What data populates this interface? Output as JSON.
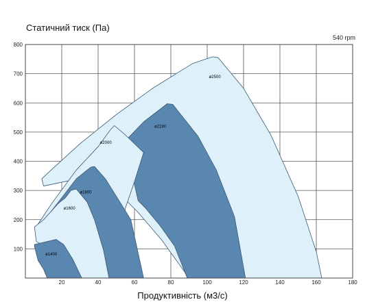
{
  "chart_data": {
    "type": "area",
    "ylabel": "Статичний тиск (Па)",
    "xlabel": "Продуктивність (м3/с)",
    "annotation": "540 rpm",
    "xlim": [
      0,
      180
    ],
    "ylim": [
      0,
      800
    ],
    "xticks": [
      20,
      40,
      60,
      80,
      100,
      120,
      140,
      160,
      180
    ],
    "yticks": [
      100,
      200,
      300,
      400,
      500,
      600,
      700,
      800
    ],
    "grid": true,
    "series": [
      {
        "name": "ø2500",
        "color": "#def1fb",
        "label_at": [
          101,
          685
        ],
        "outline": [
          [
            9,
            340
          ],
          [
            15,
            375
          ],
          [
            30,
            460
          ],
          [
            50,
            560
          ],
          [
            70,
            650
          ],
          [
            92,
            735
          ],
          [
            103,
            758
          ],
          [
            106,
            755
          ],
          [
            120,
            650
          ],
          [
            135,
            490
          ],
          [
            150,
            280
          ],
          [
            160,
            90
          ],
          [
            163,
            0
          ],
          [
            90,
            0
          ],
          [
            75,
            130
          ],
          [
            62,
            225
          ],
          [
            50,
            300
          ],
          [
            40,
            340
          ],
          [
            35,
            348
          ],
          [
            10,
            315
          ]
        ]
      },
      {
        "name": "ø2240",
        "color": "#5a87b0",
        "label_at": [
          71,
          515
        ],
        "outline": [
          [
            55,
            470
          ],
          [
            65,
            535
          ],
          [
            78,
            597
          ],
          [
            81,
            595
          ],
          [
            95,
            485
          ],
          [
            105,
            370
          ],
          [
            115,
            210
          ],
          [
            121,
            0
          ],
          [
            89,
            0
          ],
          [
            82,
            110
          ],
          [
            74,
            180
          ],
          [
            66,
            240
          ],
          [
            62,
            265
          ],
          [
            55,
            460
          ]
        ]
      },
      {
        "name": "ø2000",
        "color": "#def1fb",
        "label_at": [
          41,
          460
        ],
        "outline": [
          [
            7,
            185
          ],
          [
            15,
            260
          ],
          [
            28,
            370
          ],
          [
            40,
            450
          ],
          [
            47,
            510
          ],
          [
            49,
            522
          ],
          [
            55,
            490
          ],
          [
            60,
            460
          ],
          [
            65,
            430
          ],
          [
            60,
            330
          ],
          [
            55,
            240
          ],
          [
            52,
            170
          ],
          [
            47,
            0
          ],
          [
            25,
            0
          ],
          [
            20,
            95
          ],
          [
            15,
            150
          ],
          [
            10,
            170
          ],
          [
            8,
            185
          ]
        ]
      },
      {
        "name": "ø1800",
        "color": "#5a87b0",
        "label_at": [
          30,
          290
        ],
        "outline": [
          [
            6,
            180
          ],
          [
            10,
            195
          ],
          [
            20,
            275
          ],
          [
            28,
            340
          ],
          [
            36,
            380
          ],
          [
            38,
            382
          ],
          [
            44,
            340
          ],
          [
            50,
            280
          ],
          [
            58,
            200
          ],
          [
            65,
            0
          ],
          [
            45,
            0
          ],
          [
            42,
            85
          ],
          [
            38,
            140
          ],
          [
            34,
            180
          ],
          [
            30,
            210
          ],
          [
            20,
            240
          ],
          [
            10,
            180
          ]
        ]
      },
      {
        "name": "ø1600",
        "color": "#def1fb",
        "label_at": [
          21,
          235
        ],
        "outline": [
          [
            6,
            180
          ],
          [
            10,
            200
          ],
          [
            18,
            255
          ],
          [
            22,
            275
          ],
          [
            25,
            300
          ],
          [
            28,
            305
          ],
          [
            34,
            260
          ],
          [
            38,
            200
          ],
          [
            43,
            95
          ],
          [
            46,
            0
          ],
          [
            24,
            0
          ],
          [
            18,
            70
          ],
          [
            12,
            110
          ],
          [
            8,
            118
          ],
          [
            6,
            125
          ],
          [
            5,
            175
          ]
        ]
      },
      {
        "name": "ø1400",
        "color": "#5a87b0",
        "label_at": [
          11,
          78
        ],
        "outline": [
          [
            5,
            115
          ],
          [
            12,
            125
          ],
          [
            17,
            132
          ],
          [
            21,
            115
          ],
          [
            26,
            65
          ],
          [
            31,
            0
          ],
          [
            12,
            0
          ],
          [
            10,
            30
          ],
          [
            7,
            60
          ],
          [
            5,
            108
          ]
        ]
      }
    ]
  }
}
